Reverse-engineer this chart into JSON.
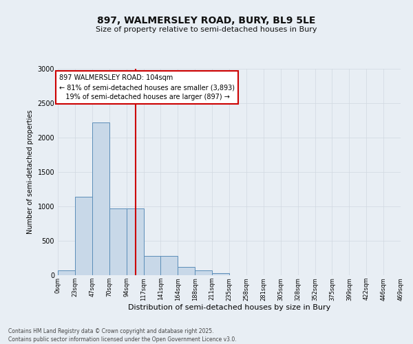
{
  "title": "897, WALMERSLEY ROAD, BURY, BL9 5LE",
  "subtitle": "Size of property relative to semi-detached houses in Bury",
  "xlabel": "Distribution of semi-detached houses by size in Bury",
  "ylabel": "Number of semi-detached properties",
  "footnote": "Contains HM Land Registry data © Crown copyright and database right 2025.\nContains public sector information licensed under the Open Government Licence v3.0.",
  "bin_labels": [
    "0sqm",
    "23sqm",
    "47sqm",
    "70sqm",
    "94sqm",
    "117sqm",
    "141sqm",
    "164sqm",
    "188sqm",
    "211sqm",
    "235sqm",
    "258sqm",
    "281sqm",
    "305sqm",
    "328sqm",
    "352sqm",
    "375sqm",
    "399sqm",
    "422sqm",
    "446sqm",
    "469sqm"
  ],
  "bar_heights": [
    75,
    1140,
    2220,
    970,
    970,
    280,
    280,
    120,
    70,
    30,
    5,
    5,
    0,
    0,
    0,
    0,
    0,
    0,
    0,
    0
  ],
  "bar_color": "#c8d8e8",
  "bar_edge_color": "#5b8db8",
  "annotation_text": "897 WALMERSLEY ROAD: 104sqm\n← 81% of semi-detached houses are smaller (3,893)\n   19% of semi-detached houses are larger (897) →",
  "annotation_box_color": "#ffffff",
  "annotation_box_edge_color": "#cc0000",
  "ylim": [
    0,
    3000
  ],
  "yticks": [
    0,
    500,
    1000,
    1500,
    2000,
    2500,
    3000
  ],
  "grid_color": "#d0d8e0",
  "background_color": "#e8eef4",
  "vline_color": "#cc0000",
  "bin_width": 23,
  "vline_x": 104,
  "n_bars": 20
}
